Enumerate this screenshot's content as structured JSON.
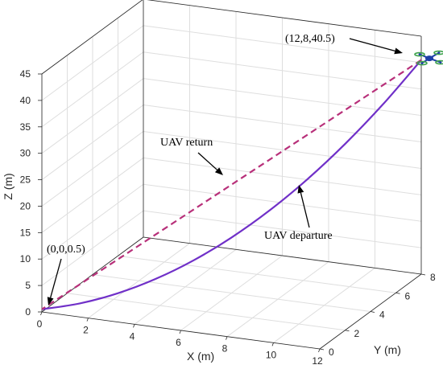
{
  "chart_data": {
    "type": "line",
    "projection": "3d",
    "xlabel": "X (m)",
    "ylabel": "Y (m)",
    "zlabel": "Z (m)",
    "xlim": [
      0,
      12
    ],
    "ylim": [
      0,
      8
    ],
    "zlim": [
      0,
      45
    ],
    "x_ticks": [
      "0",
      "2",
      "4",
      "6",
      "8",
      "10",
      "12"
    ],
    "y_ticks": [
      "0",
      "2",
      "4",
      "6",
      "8"
    ],
    "z_ticks": [
      "0",
      "5",
      "10",
      "15",
      "20",
      "25",
      "30",
      "35",
      "40",
      "45"
    ],
    "grid": true,
    "start_point": [
      0,
      0,
      0.5
    ],
    "end_point": [
      12,
      8,
      40.5
    ],
    "series": [
      {
        "name": "UAV departure",
        "style": "solid",
        "color": "#7030c8",
        "x": [
          0,
          1.2,
          2.4,
          3.6,
          4.8,
          6,
          7.2,
          8.4,
          9.6,
          10.8,
          12
        ],
        "y": [
          0,
          0.8,
          1.6,
          2.4,
          3.2,
          4,
          4.8,
          5.6,
          6.4,
          7.2,
          8
        ],
        "z": [
          0.5,
          0.9,
          2.1,
          4.1,
          6.9,
          10.5,
          14.9,
          20.1,
          26.1,
          32.9,
          40.5
        ]
      },
      {
        "name": "UAV return",
        "style": "dashed",
        "color": "#b8307a",
        "x": [
          12,
          0
        ],
        "y": [
          8,
          0
        ],
        "z": [
          40.5,
          0.5
        ]
      }
    ],
    "annotations": [
      {
        "text": "(12,8,40.5)"
      },
      {
        "text": "UAV return"
      },
      {
        "text": "UAV departure"
      },
      {
        "text": "(0,0,0.5)"
      }
    ]
  },
  "colors": {
    "box": "#262626",
    "grid": "#dedede",
    "departure": "#7030c8",
    "return": "#b8307a",
    "drone_body": "#1f3fa8",
    "drone_rotor": "#3fa34d"
  },
  "icons": [
    "drone-icon"
  ]
}
